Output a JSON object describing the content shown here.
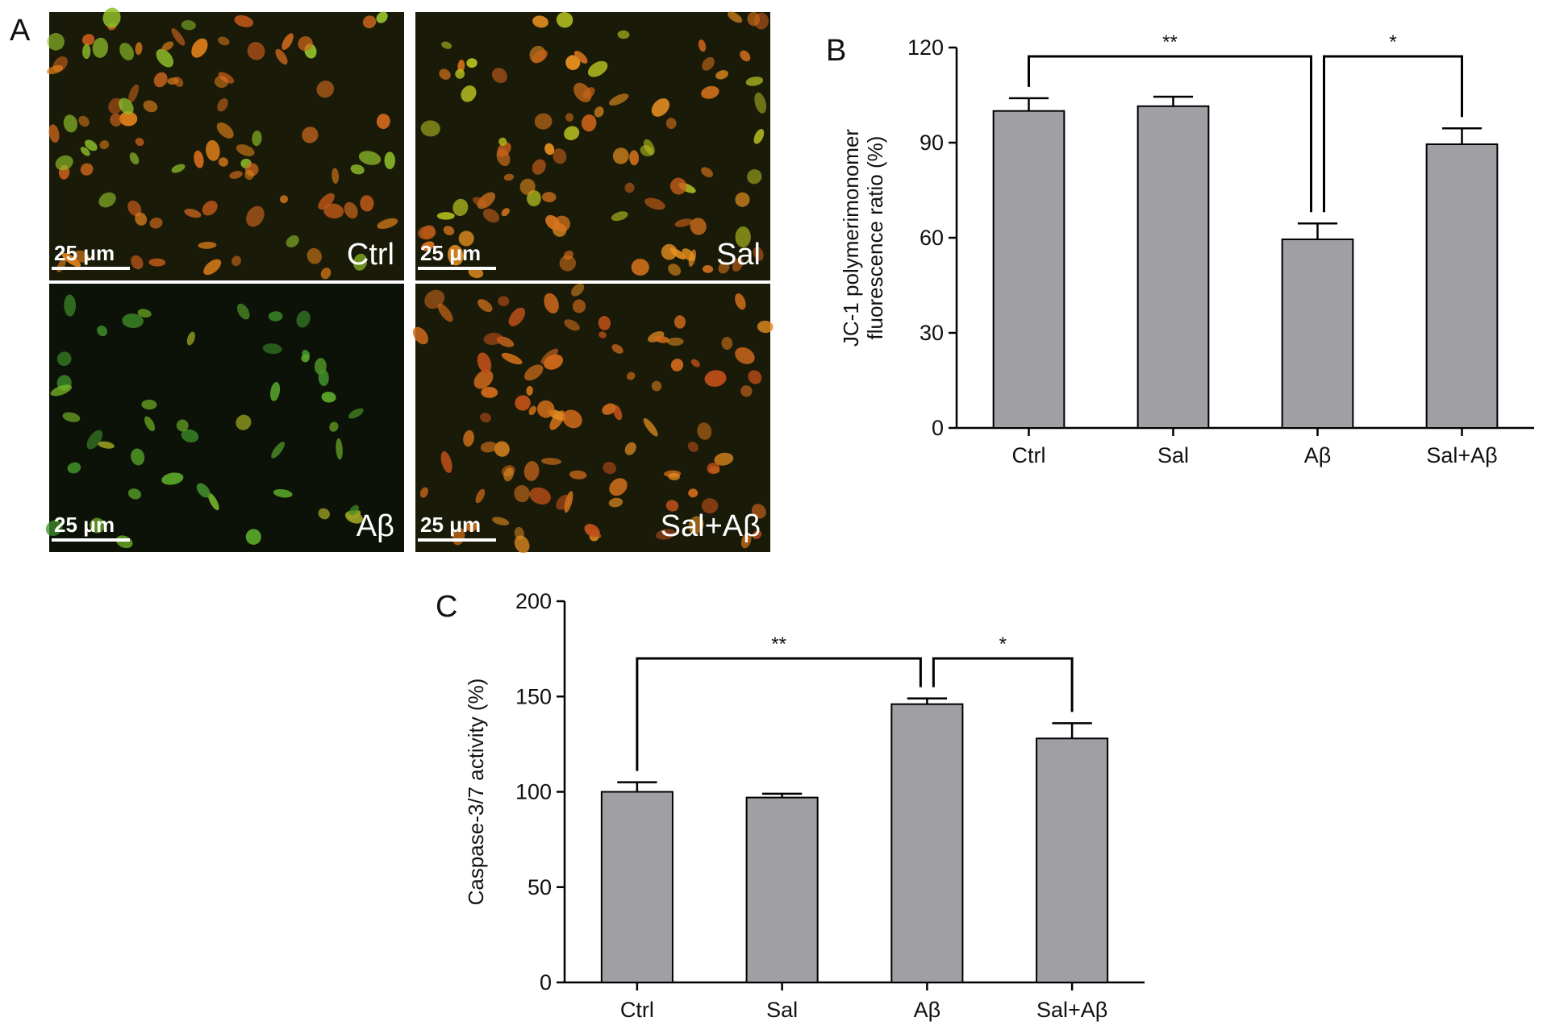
{
  "panel_a": {
    "label": "A",
    "images": [
      {
        "label": "Ctrl",
        "scale_bar": "25 μm"
      },
      {
        "label": "Sal",
        "scale_bar": "25 μm"
      },
      {
        "label": "Aβ",
        "scale_bar": "25 μm"
      },
      {
        "label": "Sal+Aβ",
        "scale_bar": "25 μm"
      }
    ]
  },
  "chart_data": [
    {
      "type": "bar",
      "panel_label": "B",
      "ylabel": [
        "JC-1 polymerimonomer",
        "fluorescence ratio (%)"
      ],
      "categories": [
        "Ctrl",
        "Sal",
        "Aβ",
        "Sal+Aβ"
      ],
      "values": [
        100,
        101.5,
        59.5,
        89.5
      ],
      "errors": [
        4,
        3,
        5,
        5
      ],
      "color": "#a0a0a4",
      "ylim": [
        0,
        120
      ],
      "yticks": [
        0,
        30,
        60,
        90,
        120
      ],
      "brackets": [
        {
          "label": "**",
          "from": 0,
          "to": 2
        },
        {
          "label": "*",
          "from": 2,
          "to": 3
        }
      ]
    },
    {
      "type": "bar",
      "panel_label": "C",
      "ylabel": [
        "Caspase-3/7 activity (%)"
      ],
      "categories": [
        "Ctrl",
        "Sal",
        "Aβ",
        "Sal+Aβ"
      ],
      "values": [
        100,
        97,
        146,
        128
      ],
      "errors": [
        5,
        2,
        3,
        8
      ],
      "color": "#a0a0a4",
      "ylim": [
        0,
        200
      ],
      "yticks": [
        0,
        50,
        100,
        150,
        200
      ],
      "brackets": [
        {
          "label": "**",
          "from": 0,
          "to": 2
        },
        {
          "label": "*",
          "from": 2,
          "to": 3
        }
      ]
    }
  ]
}
